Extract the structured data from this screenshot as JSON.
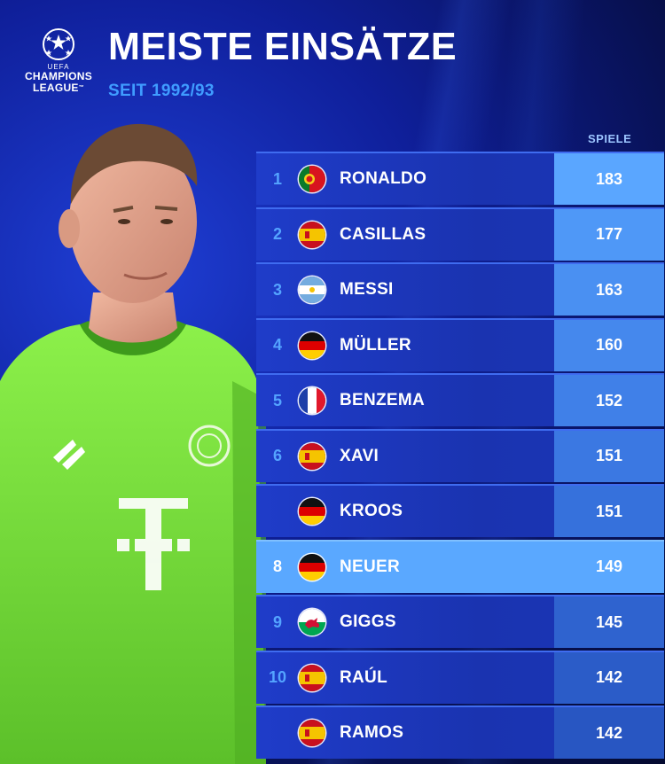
{
  "logo": {
    "uefa": "UEFA",
    "line1": "CHAMPIONS",
    "line2": "LEAGUE",
    "tm": "™"
  },
  "title": "MEISTE EINSÄTZE",
  "subtitle": "SEIT 1992/93",
  "column_header": "SPIELE",
  "jersey_logo": "T",
  "rows": [
    {
      "rank": "1",
      "name": "RONALDO",
      "games": "183",
      "flag": "portugal-flag-icon"
    },
    {
      "rank": "2",
      "name": "CASILLAS",
      "games": "177",
      "flag": "spain-flag-icon"
    },
    {
      "rank": "3",
      "name": "MESSI",
      "games": "163",
      "flag": "argentina-flag-icon"
    },
    {
      "rank": "4",
      "name": "MÜLLER",
      "games": "160",
      "flag": "germany-flag-icon"
    },
    {
      "rank": "5",
      "name": "BENZEMA",
      "games": "152",
      "flag": "france-flag-icon"
    },
    {
      "rank": "6",
      "name": "XAVI",
      "games": "151",
      "flag": "spain-flag-icon"
    },
    {
      "rank": "",
      "name": "KROOS",
      "games": "151",
      "flag": "germany-flag-icon"
    },
    {
      "rank": "8",
      "name": "NEUER",
      "games": "149",
      "flag": "germany-flag-icon",
      "highlight": true
    },
    {
      "rank": "9",
      "name": "GIGGS",
      "games": "145",
      "flag": "wales-flag-icon"
    },
    {
      "rank": "10",
      "name": "RAÚL",
      "games": "142",
      "flag": "spain-flag-icon"
    },
    {
      "rank": "",
      "name": "RAMOS",
      "games": "142",
      "flag": "spain-flag-icon"
    }
  ],
  "colors": {
    "background": "#0f1f9a",
    "accent": "#3f9cff",
    "highlight_row": "#5aa8ff",
    "jersey": "#7ee03a"
  }
}
